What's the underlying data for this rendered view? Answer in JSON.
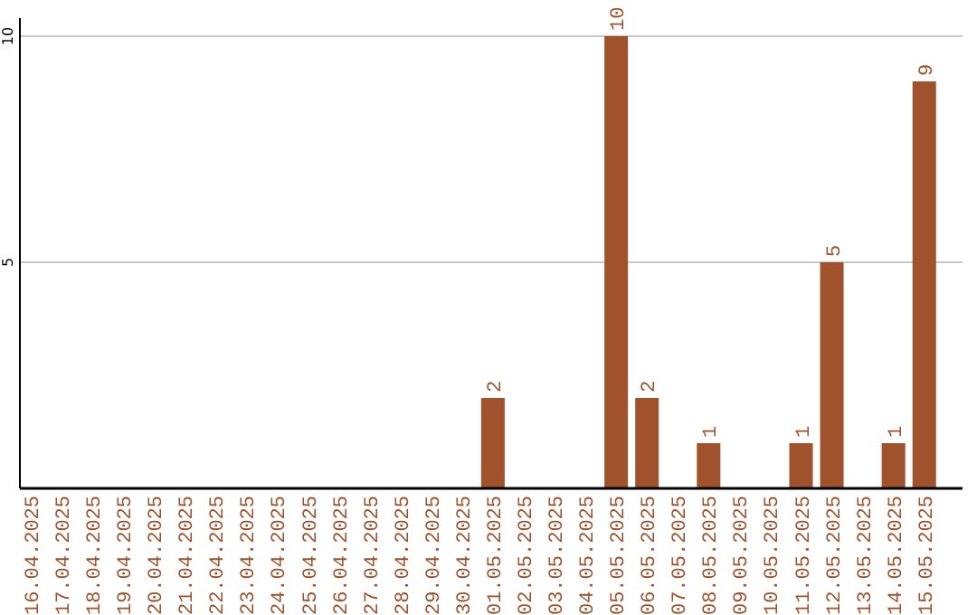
{
  "chart_data": {
    "type": "bar",
    "categories": [
      "16.04.2025",
      "17.04.2025",
      "18.04.2025",
      "19.04.2025",
      "20.04.2025",
      "21.04.2025",
      "22.04.2025",
      "23.04.2025",
      "24.04.2025",
      "25.04.2025",
      "26.04.2025",
      "27.04.2025",
      "28.04.2025",
      "29.04.2025",
      "30.04.2025",
      "01.05.2025",
      "02.05.2025",
      "03.05.2025",
      "04.05.2025",
      "05.05.2025",
      "06.05.2025",
      "07.05.2025",
      "08.05.2025",
      "09.05.2025",
      "10.05.2025",
      "11.05.2025",
      "12.05.2025",
      "13.05.2025",
      "14.05.2025",
      "15.05.2025"
    ],
    "values": [
      0,
      0,
      0,
      0,
      0,
      0,
      0,
      0,
      0,
      0,
      0,
      0,
      0,
      0,
      0,
      2,
      0,
      0,
      0,
      10,
      2,
      0,
      1,
      0,
      0,
      1,
      5,
      0,
      1,
      9
    ],
    "value_labels": [
      null,
      null,
      null,
      null,
      null,
      null,
      null,
      null,
      null,
      null,
      null,
      null,
      null,
      null,
      null,
      "2",
      null,
      null,
      null,
      "10",
      "2",
      null,
      "1",
      null,
      null,
      "1",
      "5",
      null,
      "1",
      "9"
    ],
    "color": "#a0522d",
    "ylim": [
      0,
      10
    ],
    "yticks": [
      5,
      10
    ],
    "grid": "y"
  }
}
